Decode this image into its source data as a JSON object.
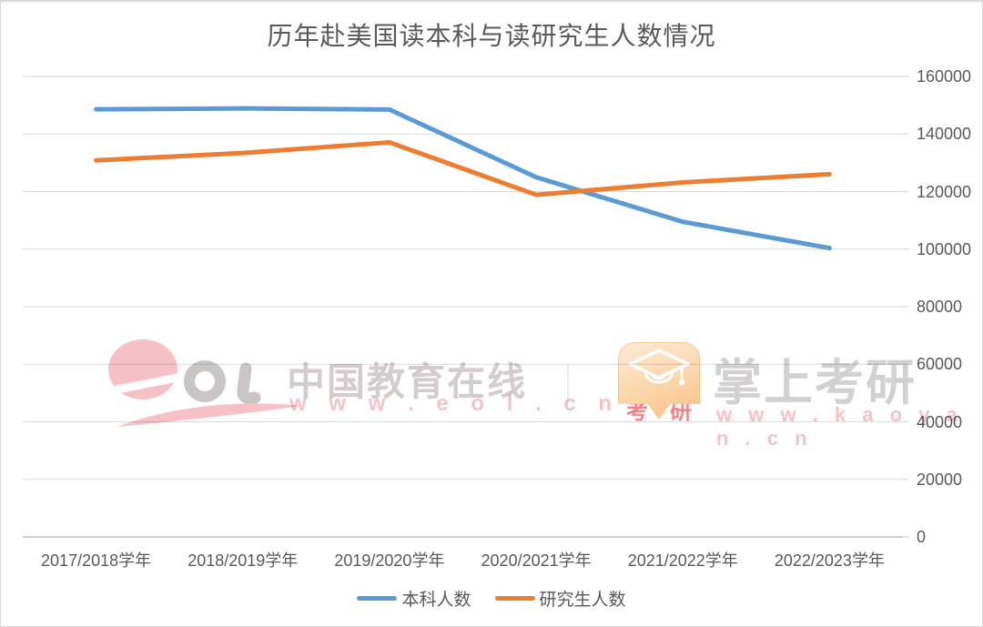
{
  "page": {
    "background": "#ffffff",
    "border_color": "#d9d9d9"
  },
  "chart_data": {
    "type": "line",
    "title": "历年赴美国读本科与读研究生人数情况",
    "categories": [
      "2017/2018学年",
      "2018/2019学年",
      "2019/2020学年",
      "2020/2021学年",
      "2021/2022学年",
      "2022/2023学年"
    ],
    "series": [
      {
        "name": "本科人数",
        "color": "#5B9BD5",
        "values": [
          148594,
          148880,
          148500,
          124969,
          109492,
          100349
        ]
      },
      {
        "name": "研究生人数",
        "color": "#ED7D31",
        "values": [
          130843,
          133396,
          137096,
          118869,
          123182,
          126028
        ]
      }
    ],
    "ylim": [
      0,
      160000
    ],
    "yticks": [
      0,
      20000,
      40000,
      60000,
      80000,
      100000,
      120000,
      140000,
      160000
    ],
    "value_axis_side": "right",
    "grid": "horizontal",
    "legend_position": "bottom",
    "grid_color": "#D9D9D9",
    "axis_color": "#BFBFBF",
    "text_color": "#595959",
    "line_width": 5
  },
  "watermarks": {
    "left": {
      "logo": "eol-logo",
      "brand": "中国教育在线",
      "url": "w w w . e o l . c n"
    },
    "right": {
      "icon": "kaoyan-app-icon",
      "seal": [
        "考",
        "研"
      ],
      "brand": "掌上考研",
      "url": "w w w . k a o y a n . c n"
    }
  }
}
